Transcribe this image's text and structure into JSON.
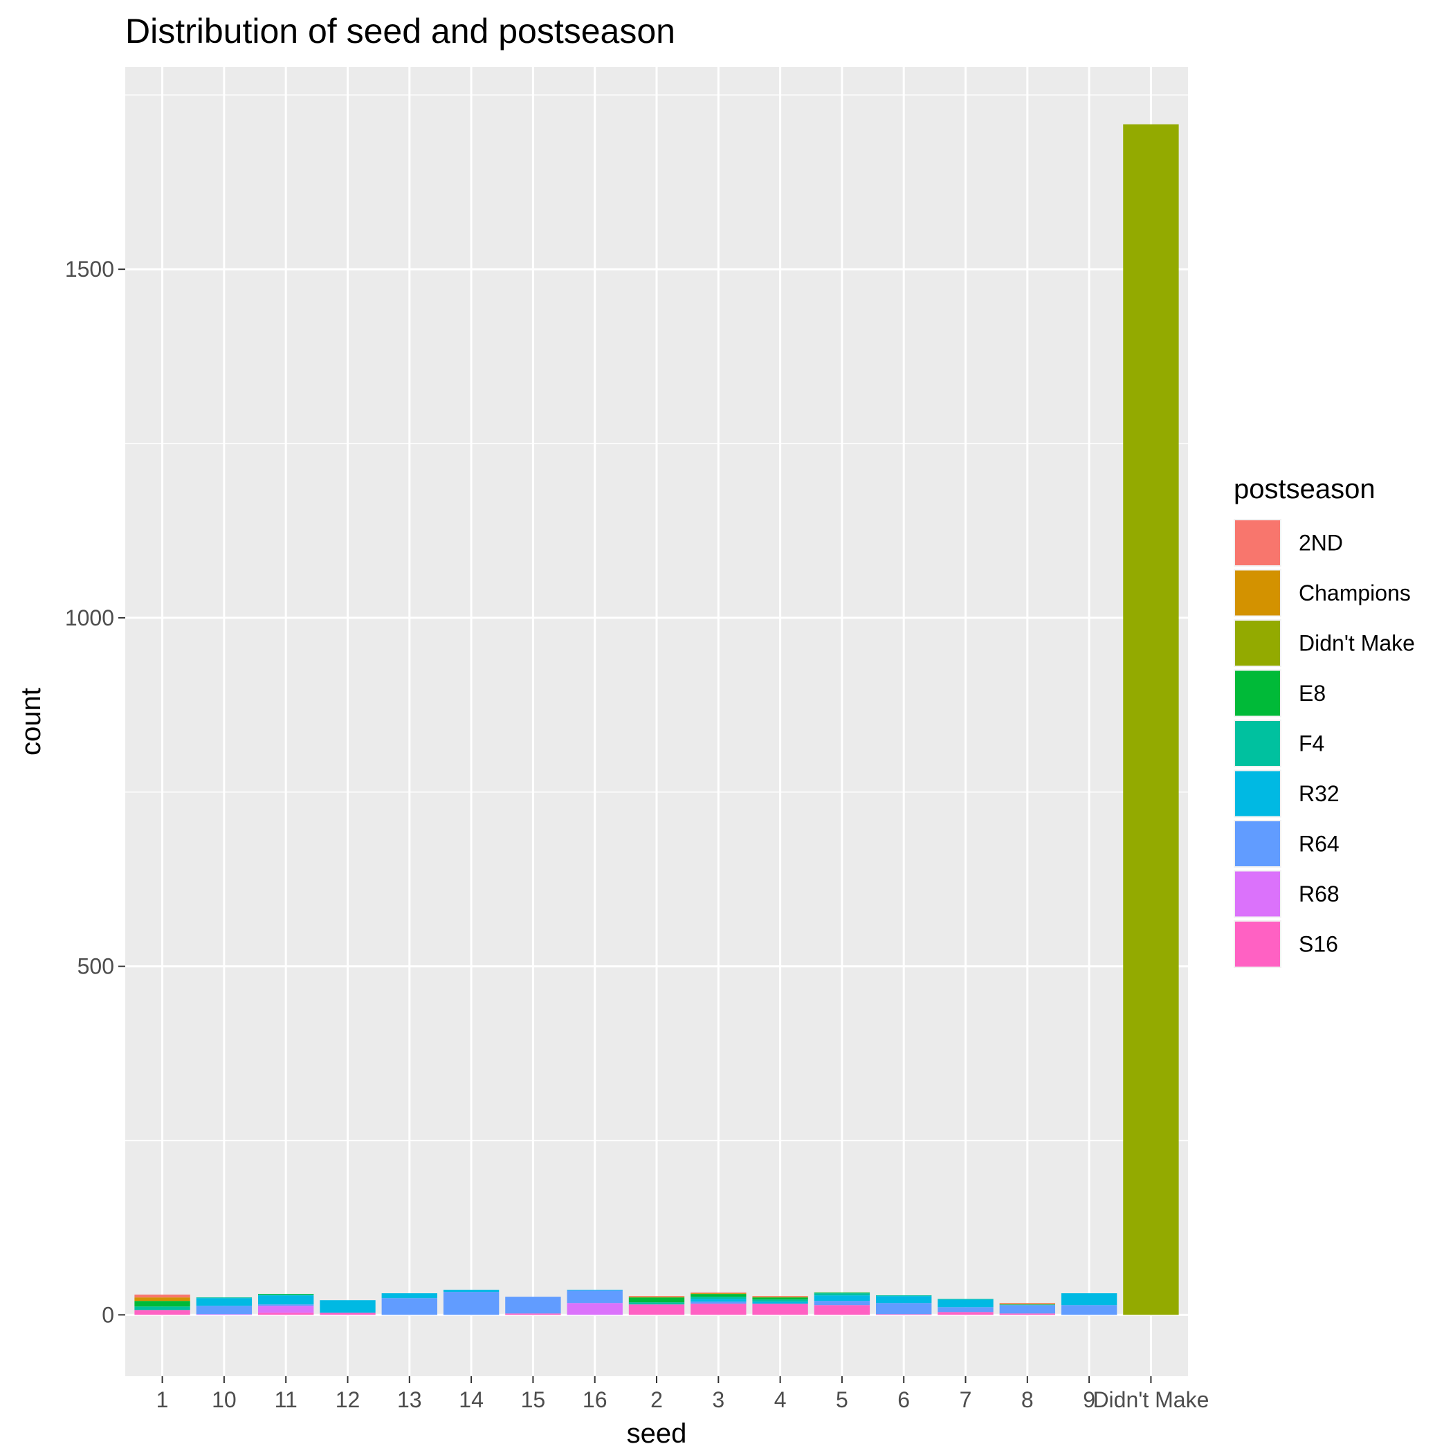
{
  "chart_data": {
    "type": "bar",
    "stacked": true,
    "title": "Distribution of seed and postseason",
    "xlabel": "seed",
    "ylabel": "count",
    "categories": [
      "1",
      "10",
      "11",
      "12",
      "13",
      "14",
      "15",
      "16",
      "2",
      "3",
      "4",
      "5",
      "6",
      "7",
      "8",
      "9",
      "Didn't Make"
    ],
    "y_ticks": [
      0,
      500,
      1000,
      1500
    ],
    "ylim": [
      -88,
      1790
    ],
    "grid": true,
    "legend": {
      "title": "postseason",
      "position": "right"
    },
    "series": [
      {
        "name": "2ND",
        "color": "#F8766D",
        "values": [
          4,
          0,
          0,
          0,
          0,
          0,
          0,
          0,
          1,
          1,
          1,
          0,
          0,
          0,
          1,
          0,
          0
        ]
      },
      {
        "name": "Champions",
        "color": "#D39200",
        "values": [
          5,
          0,
          0,
          0,
          0,
          0,
          0,
          0,
          1,
          1,
          1,
          0,
          0,
          0,
          1,
          0,
          0
        ]
      },
      {
        "name": "Didn't Make",
        "color": "#93AA00",
        "values": [
          0,
          0,
          0,
          0,
          0,
          0,
          0,
          0,
          0,
          0,
          0,
          0,
          0,
          0,
          0,
          0,
          1708
        ]
      },
      {
        "name": "E8",
        "color": "#00BA38",
        "values": [
          8,
          0,
          1,
          0,
          0,
          0,
          0,
          0,
          7,
          4,
          3,
          1,
          0,
          0,
          0,
          0,
          0
        ]
      },
      {
        "name": "F4",
        "color": "#00C19F",
        "values": [
          5,
          1,
          1,
          0,
          0,
          0,
          0,
          0,
          3,
          3,
          3,
          3,
          1,
          1,
          1,
          0,
          0
        ]
      },
      {
        "name": "R32",
        "color": "#00B9E3",
        "values": [
          0,
          11,
          13,
          18,
          7,
          3,
          0,
          1,
          0,
          4,
          3,
          8,
          10,
          11,
          0,
          17,
          0
        ]
      },
      {
        "name": "R64",
        "color": "#619CFF",
        "values": [
          0,
          12,
          2,
          0,
          24,
          33,
          24,
          18,
          0,
          3,
          0,
          6,
          16,
          7,
          12,
          14,
          0
        ]
      },
      {
        "name": "R68",
        "color": "#DB72FB",
        "values": [
          0,
          1,
          10,
          0,
          0,
          0,
          0,
          17,
          0,
          0,
          0,
          0,
          0,
          0,
          0,
          0,
          0
        ]
      },
      {
        "name": "S16",
        "color": "#FF61C3",
        "values": [
          7,
          0,
          3,
          3,
          0,
          0,
          2,
          0,
          15,
          16,
          16,
          14,
          1,
          4,
          2,
          0,
          0
        ]
      }
    ]
  }
}
